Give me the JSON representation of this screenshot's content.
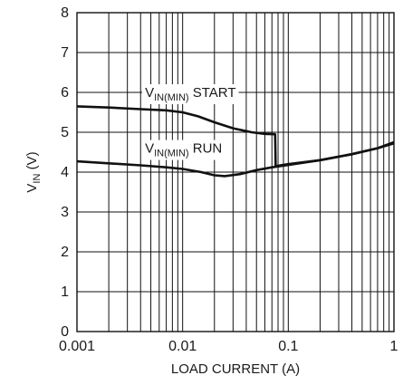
{
  "chart_data": {
    "type": "line",
    "x_scale": "log",
    "xlim": [
      0.001,
      1
    ],
    "ylim": [
      0,
      8
    ],
    "grid": true,
    "xlabel": "LOAD CURRENT (A)",
    "ylabel": {
      "main": "V",
      "sub": "IN",
      "suffix": " (V)"
    },
    "x_ticks": [
      {
        "value": 0.001,
        "label": "0.001"
      },
      {
        "value": 0.01,
        "label": "0.01"
      },
      {
        "value": 0.1,
        "label": "0.1"
      },
      {
        "value": 1,
        "label": "1"
      }
    ],
    "y_ticks": [
      {
        "value": 0,
        "label": "0"
      },
      {
        "value": 1,
        "label": "1"
      },
      {
        "value": 2,
        "label": "2"
      },
      {
        "value": 3,
        "label": "3"
      },
      {
        "value": 4,
        "label": "4"
      },
      {
        "value": 5,
        "label": "5"
      },
      {
        "value": 6,
        "label": "6"
      },
      {
        "value": 7,
        "label": "7"
      },
      {
        "value": 8,
        "label": "8"
      }
    ],
    "series": [
      {
        "name": {
          "main": "V",
          "sub": "IN(MIN)",
          "suffix": " START"
        },
        "label_at": {
          "x": 0.0044,
          "y": 6.0
        },
        "points": [
          {
            "x": 0.001,
            "y": 5.65
          },
          {
            "x": 0.002,
            "y": 5.62
          },
          {
            "x": 0.004,
            "y": 5.58
          },
          {
            "x": 0.007,
            "y": 5.55
          },
          {
            "x": 0.01,
            "y": 5.5
          },
          {
            "x": 0.014,
            "y": 5.4
          },
          {
            "x": 0.02,
            "y": 5.25
          },
          {
            "x": 0.03,
            "y": 5.1
          },
          {
            "x": 0.045,
            "y": 5.0
          },
          {
            "x": 0.06,
            "y": 4.96
          },
          {
            "x": 0.075,
            "y": 4.95
          },
          {
            "x": 0.076,
            "y": 4.15
          },
          {
            "x": 0.1,
            "y": 4.2
          },
          {
            "x": 0.2,
            "y": 4.3
          },
          {
            "x": 0.4,
            "y": 4.45
          },
          {
            "x": 0.7,
            "y": 4.6
          },
          {
            "x": 1.0,
            "y": 4.75
          }
        ]
      },
      {
        "name": {
          "main": "V",
          "sub": "IN(MIN)",
          "suffix": " RUN"
        },
        "label_at": {
          "x": 0.0044,
          "y": 4.6
        },
        "points": [
          {
            "x": 0.001,
            "y": 4.27
          },
          {
            "x": 0.002,
            "y": 4.22
          },
          {
            "x": 0.004,
            "y": 4.17
          },
          {
            "x": 0.007,
            "y": 4.12
          },
          {
            "x": 0.01,
            "y": 4.08
          },
          {
            "x": 0.015,
            "y": 4.0
          },
          {
            "x": 0.02,
            "y": 3.92
          },
          {
            "x": 0.025,
            "y": 3.9
          },
          {
            "x": 0.035,
            "y": 3.95
          },
          {
            "x": 0.05,
            "y": 4.05
          },
          {
            "x": 0.07,
            "y": 4.12
          },
          {
            "x": 0.1,
            "y": 4.18
          },
          {
            "x": 0.2,
            "y": 4.3
          },
          {
            "x": 0.4,
            "y": 4.45
          },
          {
            "x": 0.7,
            "y": 4.6
          },
          {
            "x": 1.0,
            "y": 4.72
          }
        ]
      }
    ]
  }
}
